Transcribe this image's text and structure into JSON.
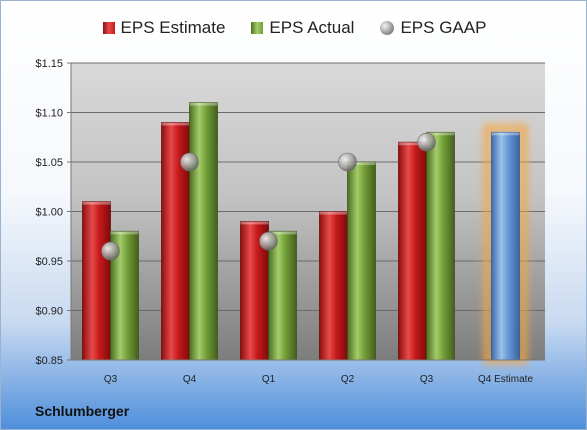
{
  "legend": [
    {
      "label": "EPS Estimate",
      "color": "#c0191b"
    },
    {
      "label": "EPS Actual",
      "color": "#6f9d35"
    },
    {
      "label": "EPS GAAP",
      "color": "#a7a7a7"
    }
  ],
  "company": "Schlumberger",
  "chart_data": {
    "type": "bar",
    "categories": [
      "Q3",
      "Q4",
      "Q1",
      "Q2",
      "Q3",
      "Q4 Estimate"
    ],
    "series": [
      {
        "name": "EPS Estimate",
        "color": "#c0191b",
        "values": [
          1.01,
          1.09,
          0.99,
          1.0,
          1.07,
          null
        ]
      },
      {
        "name": "EPS Actual",
        "color": "#6f9d35",
        "values": [
          0.98,
          1.11,
          0.98,
          1.05,
          1.08,
          null
        ]
      },
      {
        "name": "EPS GAAP",
        "type": "scatter",
        "color": "#a7a7a7",
        "values": [
          0.96,
          1.05,
          0.97,
          1.05,
          1.07,
          null
        ]
      },
      {
        "name": "Q4 Estimate",
        "color": "#5b8fd0",
        "highlight": "#f5a742",
        "values": [
          null,
          null,
          null,
          null,
          null,
          1.08
        ]
      }
    ],
    "yticks": [
      "$1.15",
      "$1.10",
      "$1.05",
      "$1.00",
      "$0.95",
      "$0.90",
      "$0.85"
    ],
    "ylim": [
      0.85,
      1.15
    ],
    "grid": true,
    "legend_position": "top"
  }
}
